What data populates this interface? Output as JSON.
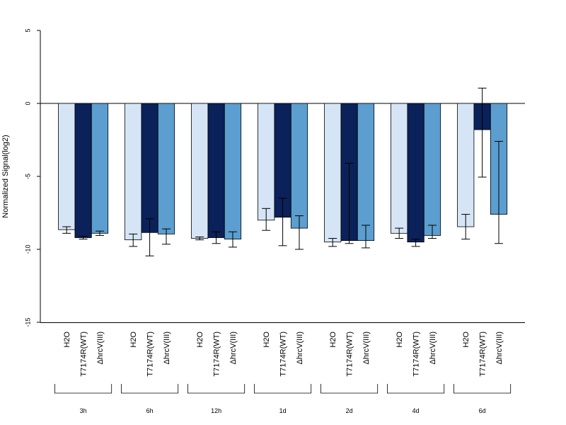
{
  "chart_data": {
    "type": "bar",
    "ylabel": "Normalized Signal(log2)",
    "ylim": [
      -15,
      5
    ],
    "yticks": [
      5,
      0,
      -5,
      -10,
      -15
    ],
    "ytick_labels": [
      "5",
      "0",
      "-5",
      "-10",
      "-15"
    ],
    "groups": [
      "3h",
      "6h",
      "12h",
      "1d",
      "2d",
      "4d",
      "6d"
    ],
    "series": [
      {
        "name": "H2O",
        "color": "#d6e5f5",
        "values": [
          -8.65,
          -9.35,
          -9.25,
          -8.0,
          -9.5,
          -8.9,
          -8.45
        ],
        "err_low": [
          -8.9,
          -9.8,
          -9.35,
          -8.7,
          -9.8,
          -9.25,
          -9.3
        ],
        "err_high": [
          -8.45,
          -8.95,
          -9.15,
          -7.2,
          -9.25,
          -8.55,
          -7.6
        ]
      },
      {
        "name": "T7174R(WT)",
        "color": "#0b2159",
        "values": [
          -9.2,
          -8.85,
          -9.2,
          -7.8,
          -9.4,
          -9.5,
          -1.8
        ],
        "err_low": [
          -9.3,
          -10.45,
          -9.6,
          -9.75,
          -9.6,
          -9.8,
          -5.05
        ],
        "err_high": [
          -9.1,
          -7.9,
          -8.8,
          -6.5,
          -4.1,
          -9.3,
          1.05
        ]
      },
      {
        "name": "ΔhrcV(III)",
        "color": "#5b9ecf",
        "values": [
          -8.9,
          -8.95,
          -9.3,
          -8.55,
          -9.4,
          -9.05,
          -7.6
        ],
        "err_low": [
          -9.05,
          -9.65,
          -9.85,
          -10.0,
          -9.9,
          -9.25,
          -9.6
        ],
        "err_high": [
          -8.75,
          -8.6,
          -8.8,
          -7.7,
          -8.35,
          -8.35,
          -2.6
        ]
      }
    ]
  }
}
